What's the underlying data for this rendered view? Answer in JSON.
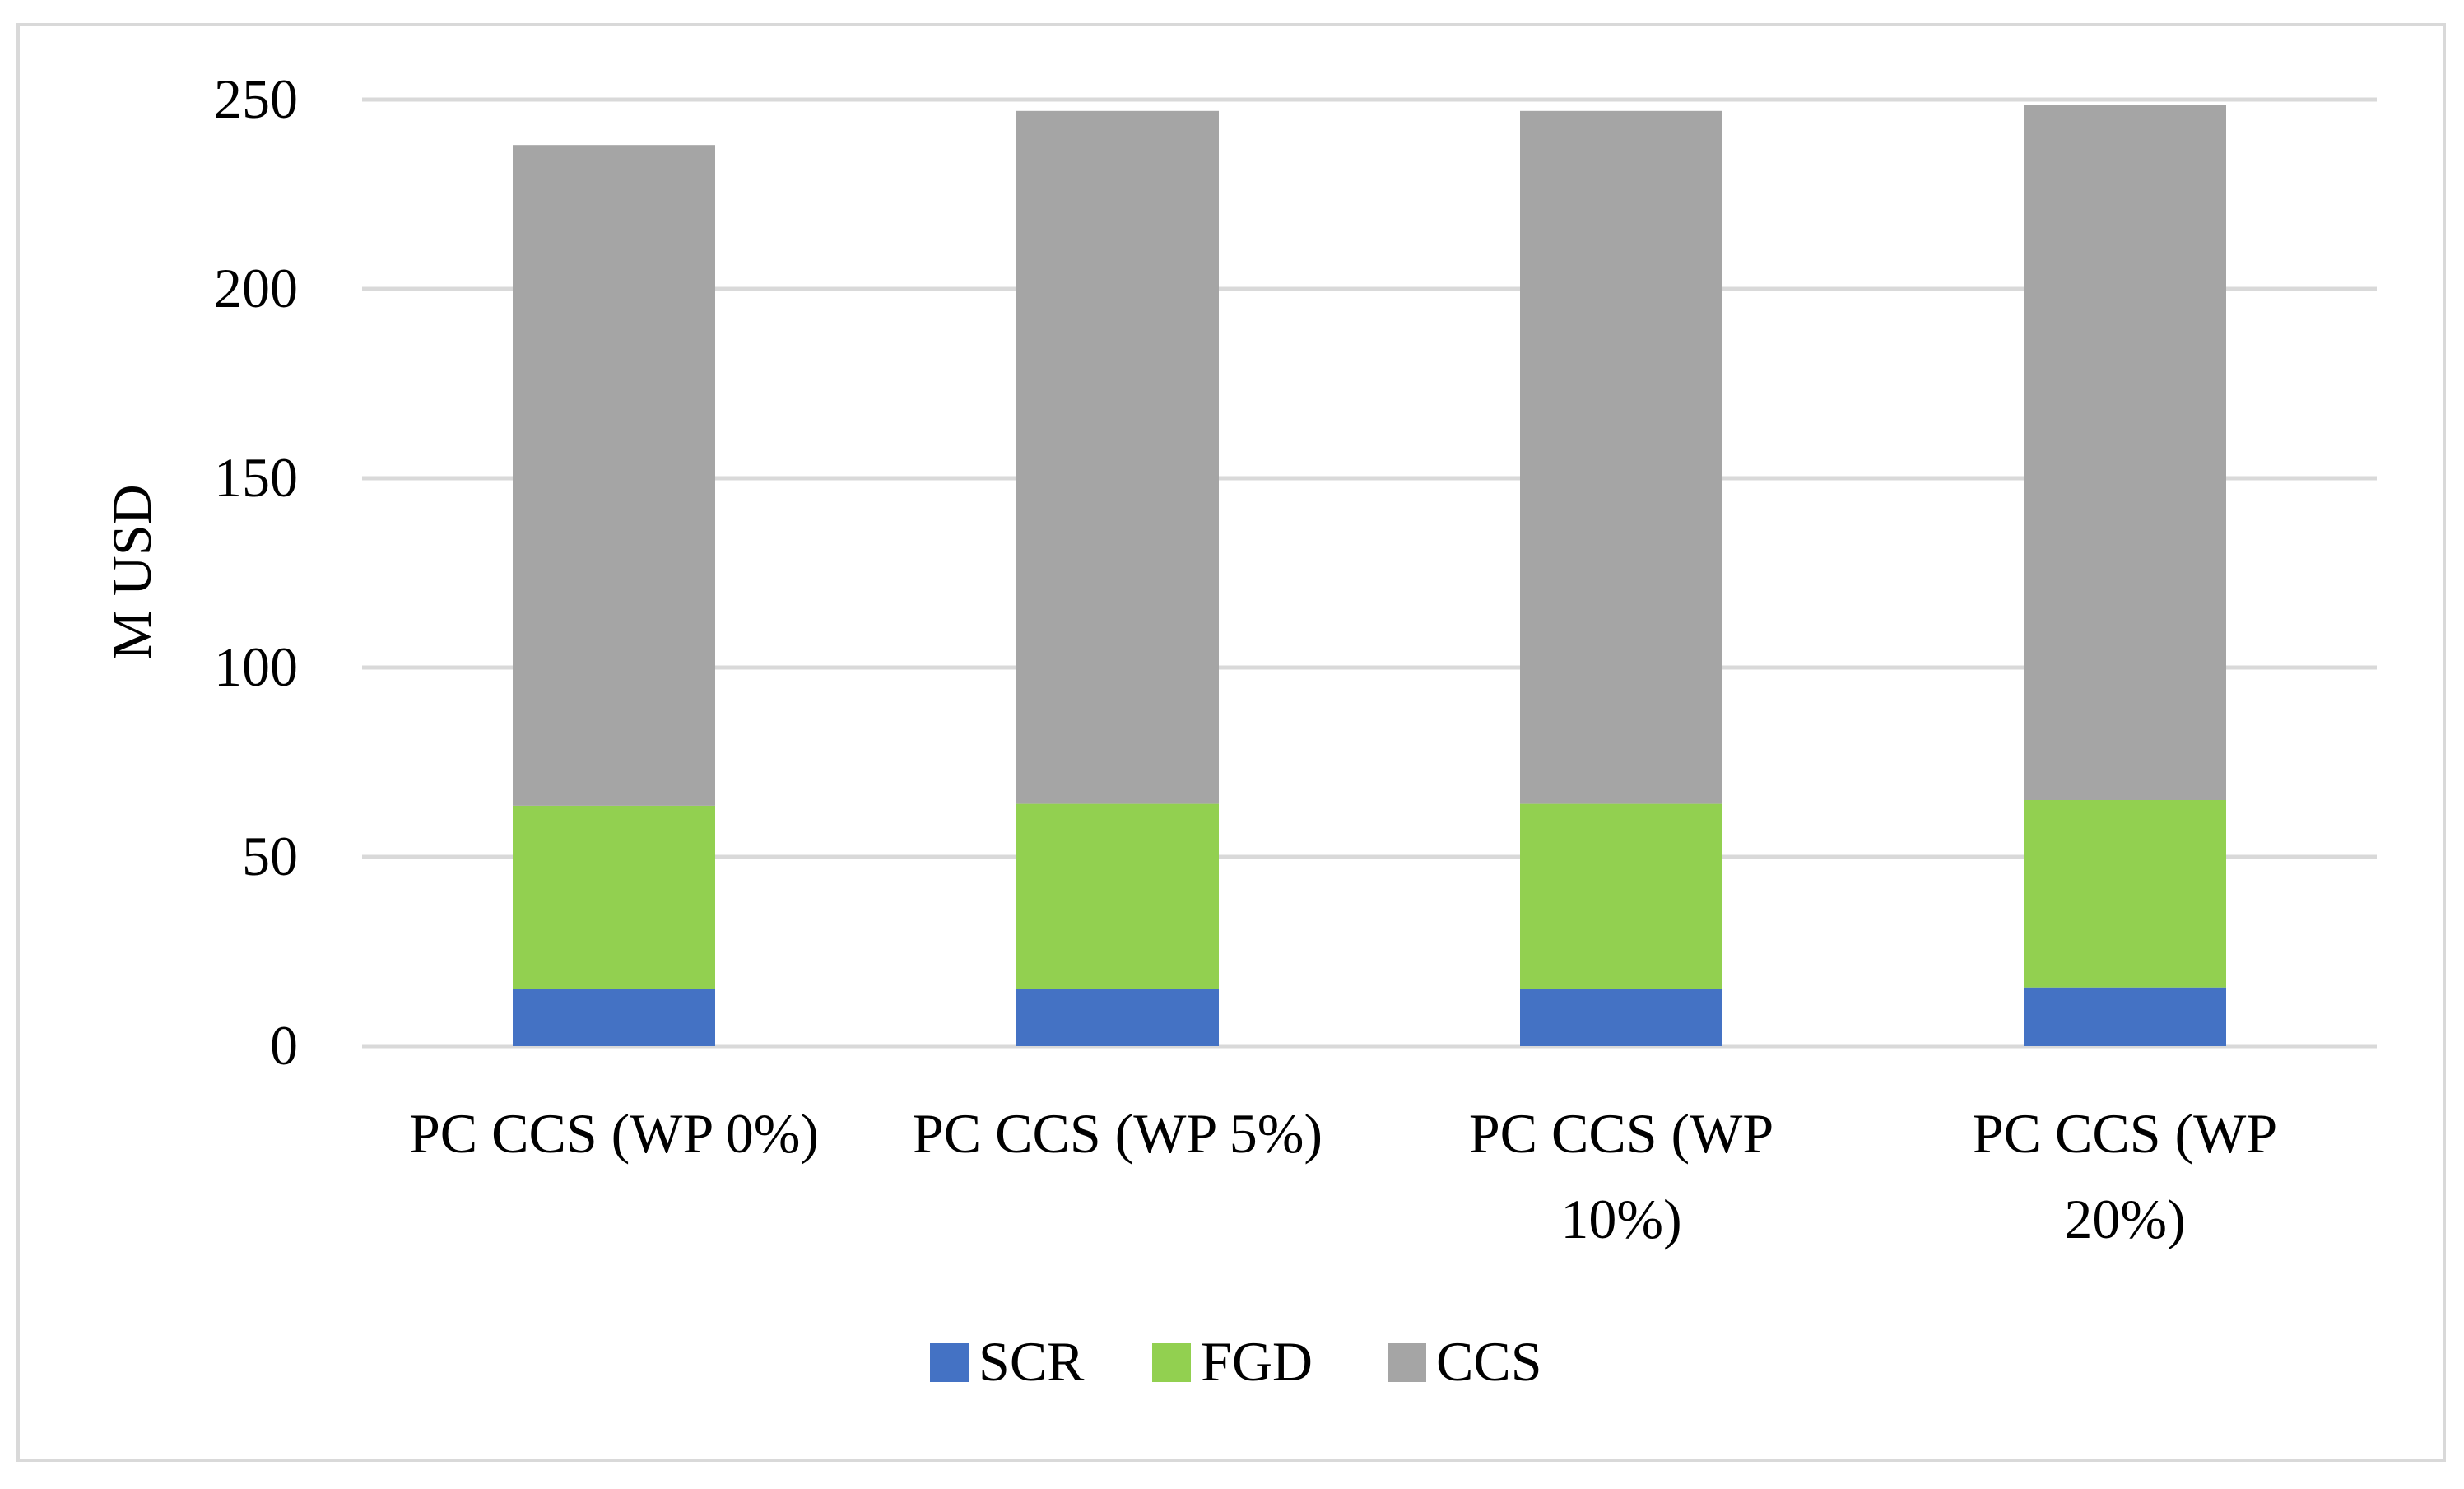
{
  "chart_data": {
    "type": "bar",
    "stacked": true,
    "categories": [
      [
        "PC CCS (WP 0%)"
      ],
      [
        "PC CCS (WP 5%)"
      ],
      [
        "PC CCS (WP",
        "10%)"
      ],
      [
        "PC CCS (WP",
        "20%)"
      ]
    ],
    "series": [
      {
        "name": "SCR",
        "color": "#4472c4",
        "values": [
          15,
          15,
          15,
          15.5
        ]
      },
      {
        "name": "FGD",
        "color": "#92d050",
        "values": [
          48.5,
          49,
          49,
          49.5
        ]
      },
      {
        "name": "CCS",
        "color": "#a5a5a5",
        "values": [
          174.5,
          183,
          183,
          183.5
        ]
      }
    ],
    "title": "",
    "xlabel": "",
    "ylabel": "M USD",
    "ylim": [
      0,
      250
    ],
    "yticks": [
      0,
      50,
      100,
      150,
      200,
      250
    ],
    "grid": true,
    "gridColor": "#d9d9d9",
    "legend": "bottom"
  }
}
